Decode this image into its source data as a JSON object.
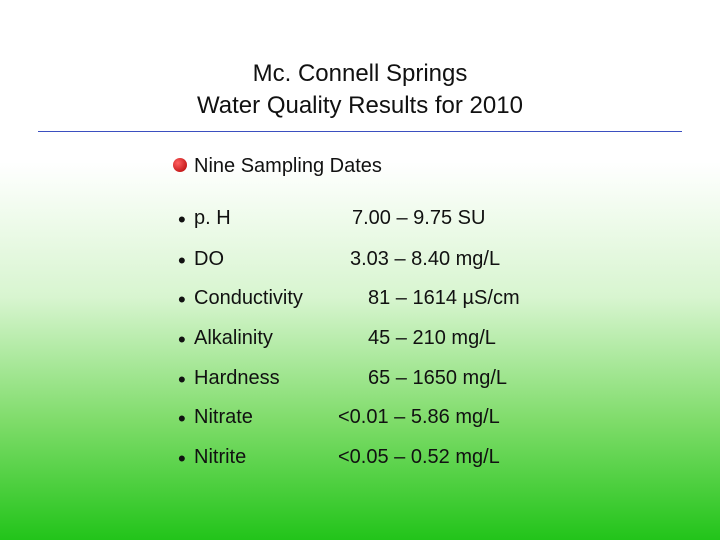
{
  "title": {
    "line1": "Mc. Connell Springs",
    "line2": "Water Quality Results for 2010"
  },
  "heading": "Nine Sampling Dates",
  "rows": [
    [
      "p. H",
      "7.00 – 9.75 SU"
    ],
    [
      "DO",
      "3.03 – 8.40 mg/L"
    ],
    [
      "Conductivity",
      "81 – 1614 µS/cm"
    ],
    [
      "Alkalinity",
      "45 – 210 mg/L"
    ],
    [
      "Hardness",
      "65 – 1650 mg/L"
    ],
    [
      "Nitrate",
      "<0.01 – 5.86 mg/L"
    ],
    [
      "Nitrite",
      "<0.05 – 0.52 mg/L"
    ]
  ]
}
